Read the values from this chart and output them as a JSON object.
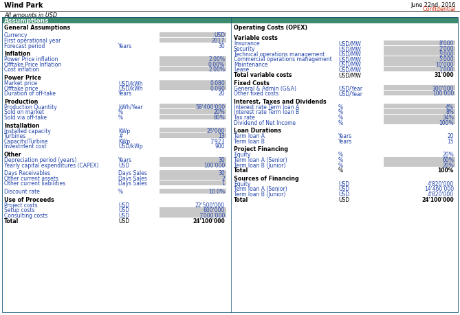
{
  "title_left": "Wind Park",
  "title_right_line1": "June 22nd, 2016",
  "title_right_line2": "Confidential",
  "subtitle": "All amounts in USD",
  "section_header": "Assumptions",
  "header_bg": "#3d8b6e",
  "input_bg": "#c8c8c8",
  "input_text_color": "#2244aa",
  "blue_label_color": "#2244aa",
  "border_color": "#1a5276",
  "left_sections": [
    {
      "header": "General Assumptions",
      "gap_after_header": true,
      "rows": [
        {
          "label": "Currency",
          "unit": "",
          "value": "USD",
          "input": true
        },
        {
          "label": "First operational year",
          "unit": "",
          "value": "2017",
          "input": true
        },
        {
          "label": "Forecast period",
          "unit": "Years",
          "value": "30",
          "input": false
        }
      ]
    },
    {
      "header": "Inflation",
      "gap_after_header": false,
      "rows": [
        {
          "label": "Power Price inflation",
          "unit": "",
          "value": "2.00%",
          "input": true
        },
        {
          "label": "Offtake Price Inflation",
          "unit": "",
          "value": "0.00%",
          "input": true
        },
        {
          "label": "Cost inflation",
          "unit": "",
          "value": "2.00%",
          "input": true
        }
      ]
    },
    {
      "header": "Power Price",
      "gap_after_header": false,
      "rows": [
        {
          "label": "Market price",
          "unit": "USD/kWh",
          "value": "0.080",
          "input": true
        },
        {
          "label": "Offtake price",
          "unit": "USD/kWh",
          "value": "0.090",
          "input": true
        },
        {
          "label": "Duration of off-take",
          "unit": "Years",
          "value": "20",
          "input": false
        }
      ]
    },
    {
      "header": "Production",
      "gap_after_header": false,
      "rows": [
        {
          "label": "Production Quantity",
          "unit": "kWh/Year",
          "value": "58'400'000",
          "input": true
        },
        {
          "label": "Sold on market",
          "unit": "%",
          "value": "20%",
          "input": true
        },
        {
          "label": "Sold via off-take",
          "unit": "%",
          "value": "80%",
          "input": true
        }
      ]
    },
    {
      "header": "Installation",
      "gap_after_header": false,
      "rows": [
        {
          "label": "Installed capacity",
          "unit": "KWp",
          "value": "25'000",
          "input": true
        },
        {
          "label": "Turbines",
          "unit": "#",
          "value": "13",
          "input": true
        },
        {
          "label": "Capacity/Turbine",
          "unit": "KWp",
          "value": "1'923",
          "input": false
        },
        {
          "label": "Investment cost",
          "unit": "USD/kWp",
          "value": "900",
          "input": false
        }
      ]
    },
    {
      "header": "Other",
      "gap_after_header": false,
      "rows": [
        {
          "label": "Depreciation period (years)",
          "unit": "Years",
          "value": "30",
          "input": true
        },
        {
          "label": "Yearly capital expenditures (CAPEX)",
          "unit": "USD",
          "value": "100'000",
          "input": true
        }
      ]
    },
    {
      "header": "",
      "gap_after_header": false,
      "rows": [
        {
          "label": "Days Receivables",
          "unit": "Days Sales",
          "value": "30",
          "input": true
        },
        {
          "label": "Other current assets",
          "unit": "Days Sales",
          "value": "2",
          "input": true
        },
        {
          "label": "Other current liabilities",
          "unit": "Days Sales",
          "value": "1",
          "input": true
        }
      ]
    },
    {
      "header": "",
      "gap_after_header": false,
      "rows": [
        {
          "label": "Discount rate",
          "unit": "%",
          "value": "10.0%",
          "input": true
        }
      ]
    },
    {
      "header": "Use of Proceeds",
      "gap_after_header": false,
      "rows": [
        {
          "label": "Project costs",
          "unit": "USD",
          "value": "22'500'000",
          "input": false
        },
        {
          "label": "Setup costs",
          "unit": "USD",
          "value": "600'000",
          "input": true
        },
        {
          "label": "Consulting costs",
          "unit": "USD",
          "value": "1'000'000",
          "input": true
        },
        {
          "label": "Total",
          "unit": "USD",
          "value": "24'100'000",
          "input": false,
          "bold": true
        }
      ]
    }
  ],
  "right_sections": [
    {
      "header": "Operating Costs (OPEX)",
      "gap_after_header": true,
      "rows": []
    },
    {
      "header": "Variable costs",
      "gap_after_header": false,
      "rows": [
        {
          "label": "Insurance",
          "unit": "USD/MW",
          "value": "8'000",
          "input": true
        },
        {
          "label": "Security",
          "unit": "USD/MW",
          "value": "2'000",
          "input": true
        },
        {
          "label": "Technical operations management",
          "unit": "USD/MW",
          "value": "5'000",
          "input": true
        },
        {
          "label": "Commercial operations management",
          "unit": "USD/MW",
          "value": "5'000",
          "input": true
        },
        {
          "label": "Maintenance",
          "unit": "USD/MW",
          "value": "10'000",
          "input": true
        },
        {
          "label": "Lease",
          "unit": "USD/MW",
          "value": "1'000",
          "input": true
        },
        {
          "label": "Total variable costs",
          "unit": "USD/MW",
          "value": "31'000",
          "input": false,
          "bold": true
        }
      ]
    },
    {
      "header": "Fixed Costs",
      "gap_after_header": false,
      "rows": [
        {
          "label": "General & Admin (G&A)",
          "unit": "USD/Year",
          "value": "300'000",
          "input": true
        },
        {
          "label": "Other fixed costs",
          "unit": "USD/Year",
          "value": "100'000",
          "input": true
        }
      ]
    },
    {
      "header": "Interest, Taxes and Dividends",
      "gap_after_header": false,
      "rows": [
        {
          "label": "Interest rate Term loan A",
          "unit": "%",
          "value": "4%",
          "input": true
        },
        {
          "label": "Interest rate Term loan B",
          "unit": "%",
          "value": "8%",
          "input": true
        },
        {
          "label": "Tax rate",
          "unit": "%",
          "value": "34%",
          "input": true
        },
        {
          "label": "Dividend of Net Income",
          "unit": "%",
          "value": "100%",
          "input": true
        }
      ]
    },
    {
      "header": "Loan Durations",
      "gap_after_header": false,
      "rows": [
        {
          "label": "Term loan A",
          "unit": "Years",
          "value": "20",
          "input": false
        },
        {
          "label": "Term loan B",
          "unit": "Years",
          "value": "15",
          "input": false
        }
      ]
    },
    {
      "header": "Project Financing",
      "gap_after_header": false,
      "rows": [
        {
          "label": "Equity",
          "unit": "%",
          "value": "20%",
          "input": false
        },
        {
          "label": "Term loan A (Senior)",
          "unit": "%",
          "value": "60%",
          "input": true
        },
        {
          "label": "Term loan B (Junior)",
          "unit": "%",
          "value": "20%",
          "input": true
        },
        {
          "label": "Total",
          "unit": "%",
          "value": "100%",
          "input": false,
          "bold": true
        }
      ]
    },
    {
      "header": "Sources of Financing",
      "gap_after_header": false,
      "rows": [
        {
          "label": "Equity",
          "unit": "USD",
          "value": "4'820'000",
          "input": false
        },
        {
          "label": "Term loan A (Senior)",
          "unit": "USD",
          "value": "14'460'000",
          "input": false
        },
        {
          "label": "Term loan B (Junior)",
          "unit": "USD",
          "value": "4'820'000",
          "input": false
        },
        {
          "label": "Total",
          "unit": "USD",
          "value": "24'100'000",
          "input": false,
          "bold": true
        }
      ]
    }
  ]
}
